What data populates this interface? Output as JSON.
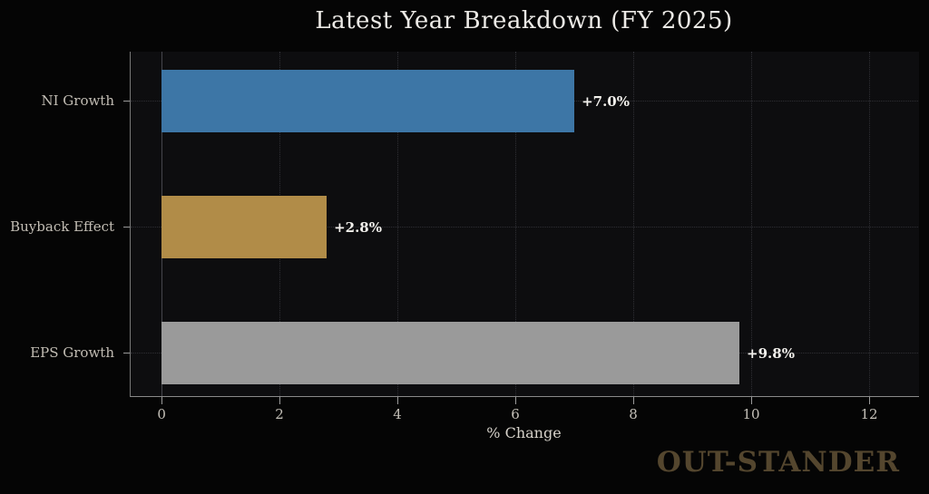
{
  "watermark": "OUT-STANDER",
  "colors": {
    "background": "#050505",
    "plot_background": "#0d0d0f",
    "spine": "#8a8a8a",
    "grid": "#2f2f34",
    "title_text": "#eceae6",
    "tick_text": "#c2bdb4",
    "value_label_text": "#f2f0ec",
    "watermark_text": "#54462e"
  },
  "chart_data": {
    "type": "bar",
    "orientation": "horizontal",
    "title": "Latest Year Breakdown (FY 2025)",
    "xlabel": "% Change",
    "ylabel": "",
    "categories": [
      "NI Growth",
      "Buyback Effect",
      "EPS Growth"
    ],
    "values": [
      7.0,
      2.8,
      9.8
    ],
    "data_labels": [
      "+7.0%",
      "+2.8%",
      "+9.8%"
    ],
    "bar_colors": [
      "#3d76a6",
      "#b18c48",
      "#9a9a9a"
    ],
    "x_ticks": [
      0,
      2,
      4,
      6,
      8,
      10,
      12
    ],
    "xlim": [
      -0.54,
      12.83
    ],
    "grid": true,
    "legend": null
  }
}
